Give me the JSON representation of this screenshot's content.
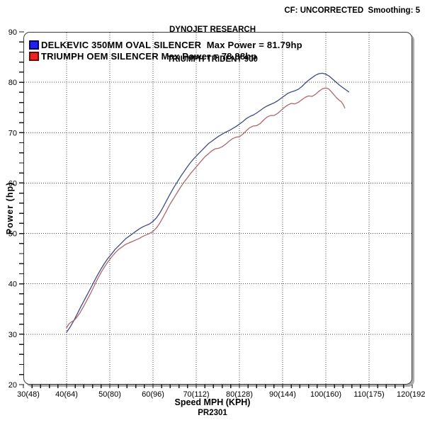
{
  "header": {
    "line1": "DYNOJET RESEARCH",
    "line2": "TRIUMPH TRIDENT 900",
    "right": "CF: UNCORRECTED  Smoothing: 5"
  },
  "footer": {
    "code": "PR2301"
  },
  "chart_data": {
    "type": "line",
    "title": "DYNOJET RESEARCH TRIUMPH TRIDENT 900",
    "xlabel": "Speed MPH (KPH)",
    "ylabel": "Power (hp)",
    "xlim": [
      30,
      120
    ],
    "ylim": [
      20,
      90
    ],
    "grid": "dotted",
    "legend_position": "top-left",
    "x_tick_values": [
      30,
      40,
      50,
      60,
      70,
      80,
      90,
      100,
      110,
      120
    ],
    "x_tick_labels": [
      "30(48)",
      "40(64)",
      "50(80)",
      "60(96)",
      "70(112)",
      "80(128)",
      "90(144)",
      "100(160)",
      "110(175)",
      "120(192)"
    ],
    "y_tick_values": [
      20,
      30,
      40,
      50,
      60,
      70,
      80,
      90
    ],
    "y_tick_labels": [
      "20",
      "30",
      "40",
      "50",
      "60",
      "70",
      "80",
      "90"
    ],
    "minor_tick_step_x": 2,
    "minor_tick_step_y": 2,
    "colors": {
      "grid": "#4d4d4d",
      "frame": "#3c3c3c",
      "frame_shadow": "#ababab",
      "tick": "#1a1a1a",
      "text": "#000000"
    },
    "series": [
      {
        "name": "DELKEVIC 350MM OVAL SILENCER",
        "legend_label": "DELKEVIC 350MM OVAL SILENCER  Max Power = 81.79hp",
        "max_power_hp": 81.79,
        "color": "#36417e",
        "swatch_color": "#2020f0",
        "swatch_border": "#000070",
        "points": [
          [
            40,
            30.4
          ],
          [
            40.8,
            31.4
          ],
          [
            41.6,
            32.6
          ],
          [
            42.4,
            33.9
          ],
          [
            43.2,
            35.3
          ],
          [
            44,
            36.6
          ],
          [
            44.8,
            37.9
          ],
          [
            45.6,
            39.2
          ],
          [
            46.4,
            40.5
          ],
          [
            47.2,
            41.8
          ],
          [
            48,
            43.0
          ],
          [
            48.8,
            44.1
          ],
          [
            49.6,
            45.1
          ],
          [
            50.4,
            45.9
          ],
          [
            51.2,
            46.8
          ],
          [
            52,
            47.5
          ],
          [
            52.8,
            48.2
          ],
          [
            53.6,
            48.9
          ],
          [
            54.4,
            49.4
          ],
          [
            55.2,
            49.9
          ],
          [
            56,
            50.4
          ],
          [
            56.8,
            50.9
          ],
          [
            57.6,
            51.3
          ],
          [
            58.4,
            51.6
          ],
          [
            59.2,
            51.9
          ],
          [
            60,
            52.4
          ],
          [
            60.8,
            53.1
          ],
          [
            61.6,
            54.1
          ],
          [
            62.4,
            55.3
          ],
          [
            63.2,
            56.6
          ],
          [
            64,
            57.9
          ],
          [
            64.8,
            59.1
          ],
          [
            65.6,
            60.2
          ],
          [
            66.4,
            61.3
          ],
          [
            67.2,
            62.3
          ],
          [
            68,
            63.3
          ],
          [
            68.8,
            64.2
          ],
          [
            69.6,
            65.0
          ],
          [
            70.4,
            65.7
          ],
          [
            71.2,
            66.4
          ],
          [
            72,
            67.1
          ],
          [
            72.8,
            67.8
          ],
          [
            73.6,
            68.3
          ],
          [
            74.4,
            68.8
          ],
          [
            75.2,
            69.3
          ],
          [
            76,
            69.7
          ],
          [
            76.8,
            70.1
          ],
          [
            77.6,
            70.4
          ],
          [
            78.4,
            70.8
          ],
          [
            79.2,
            71.2
          ],
          [
            80,
            71.7
          ],
          [
            80.8,
            72.2
          ],
          [
            81.6,
            72.8
          ],
          [
            82.4,
            73.2
          ],
          [
            83.2,
            73.5
          ],
          [
            84,
            73.9
          ],
          [
            84.8,
            74.4
          ],
          [
            85.6,
            74.9
          ],
          [
            86.4,
            75.3
          ],
          [
            87.2,
            75.6
          ],
          [
            88,
            75.9
          ],
          [
            88.8,
            76.3
          ],
          [
            89.6,
            76.8
          ],
          [
            90.4,
            77.3
          ],
          [
            91.2,
            77.8
          ],
          [
            92,
            78.1
          ],
          [
            92.8,
            78.3
          ],
          [
            93.6,
            78.6
          ],
          [
            94.4,
            79.1
          ],
          [
            95.2,
            79.8
          ],
          [
            96,
            80.4
          ],
          [
            96.8,
            80.9
          ],
          [
            97.6,
            81.4
          ],
          [
            98.4,
            81.7
          ],
          [
            99.2,
            81.79
          ],
          [
            100,
            81.6
          ],
          [
            100.8,
            81.2
          ],
          [
            101.6,
            80.6
          ],
          [
            102.4,
            80.0
          ],
          [
            103.2,
            79.4
          ],
          [
            104,
            78.9
          ],
          [
            104.8,
            78.4
          ],
          [
            105.3,
            78.1
          ]
        ]
      },
      {
        "name": "TRIUMPH OEM SILENCER",
        "legend_label": "TRIUMPH OEM SILENCER Max Power = 78.88hp",
        "max_power_hp": 78.88,
        "color": "#ad5f60",
        "swatch_color": "#f02020",
        "swatch_border": "#700000",
        "points": [
          [
            40,
            31.3
          ],
          [
            40.6,
            32.1
          ],
          [
            41.2,
            32.5
          ],
          [
            41.8,
            32.8
          ],
          [
            42.4,
            33.4
          ],
          [
            43.2,
            34.4
          ],
          [
            44,
            35.6
          ],
          [
            44.8,
            36.9
          ],
          [
            45.6,
            38.2
          ],
          [
            46.4,
            39.6
          ],
          [
            47.2,
            41.0
          ],
          [
            48,
            42.3
          ],
          [
            48.8,
            43.4
          ],
          [
            49.6,
            44.4
          ],
          [
            50.4,
            45.3
          ],
          [
            51.2,
            46.1
          ],
          [
            52,
            46.8
          ],
          [
            52.8,
            47.3
          ],
          [
            53.6,
            47.8
          ],
          [
            54.4,
            48.1
          ],
          [
            55.2,
            48.4
          ],
          [
            56,
            48.7
          ],
          [
            56.8,
            49.0
          ],
          [
            57.6,
            49.4
          ],
          [
            58.4,
            49.7
          ],
          [
            59.2,
            50.0
          ],
          [
            60,
            50.4
          ],
          [
            60.8,
            51.1
          ],
          [
            61.6,
            52.1
          ],
          [
            62.4,
            53.3
          ],
          [
            63.2,
            54.6
          ],
          [
            64,
            55.9
          ],
          [
            64.8,
            57.0
          ],
          [
            65.6,
            58.1
          ],
          [
            66.4,
            59.2
          ],
          [
            67.2,
            60.2
          ],
          [
            68,
            61.1
          ],
          [
            68.8,
            62.0
          ],
          [
            69.6,
            62.8
          ],
          [
            70.4,
            63.6
          ],
          [
            71.2,
            64.4
          ],
          [
            72,
            65.2
          ],
          [
            72.8,
            65.8
          ],
          [
            73.6,
            66.4
          ],
          [
            74.4,
            66.8
          ],
          [
            75.2,
            66.9
          ],
          [
            76,
            67.2
          ],
          [
            76.8,
            67.7
          ],
          [
            77.6,
            68.3
          ],
          [
            78.4,
            68.8
          ],
          [
            79.2,
            69.1
          ],
          [
            80,
            69.2
          ],
          [
            80.8,
            69.7
          ],
          [
            81.6,
            70.4
          ],
          [
            82.4,
            71.0
          ],
          [
            83.2,
            71.3
          ],
          [
            84,
            71.4
          ],
          [
            84.8,
            71.8
          ],
          [
            85.6,
            72.5
          ],
          [
            86.4,
            73.1
          ],
          [
            87.2,
            73.4
          ],
          [
            88,
            73.4
          ],
          [
            88.8,
            73.8
          ],
          [
            89.6,
            74.4
          ],
          [
            90.4,
            75.0
          ],
          [
            91.2,
            75.5
          ],
          [
            92,
            75.8
          ],
          [
            92.8,
            75.7
          ],
          [
            93.6,
            76.0
          ],
          [
            94.4,
            76.5
          ],
          [
            95.2,
            77.0
          ],
          [
            96,
            77.3
          ],
          [
            96.8,
            77.2
          ],
          [
            97.6,
            77.6
          ],
          [
            98.4,
            78.2
          ],
          [
            99.2,
            78.7
          ],
          [
            100,
            78.88
          ],
          [
            100.6,
            78.7
          ],
          [
            101.2,
            78.2
          ],
          [
            101.8,
            77.6
          ],
          [
            102.4,
            77.0
          ],
          [
            103,
            76.5
          ],
          [
            103.6,
            76.1
          ],
          [
            104,
            75.6
          ],
          [
            104.4,
            74.9
          ]
        ]
      }
    ]
  }
}
